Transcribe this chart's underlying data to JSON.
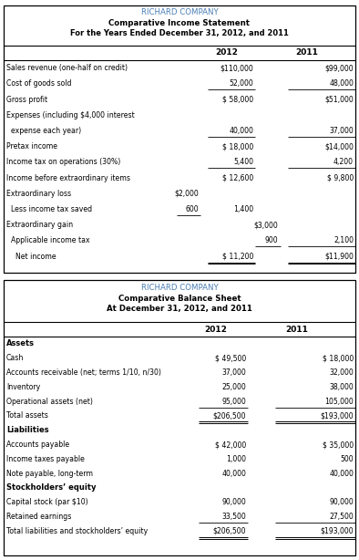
{
  "income_statement": {
    "title1": "RICHARD COMPANY",
    "title2": "Comparative Income Statement",
    "title3": "For the Years Ended December 31, 2012, and 2011",
    "col_headers": [
      "2012",
      "2011"
    ],
    "rows": [
      {
        "label": "Sales revenue (one-half on credit)",
        "col1": "$110,000",
        "col2": "$99,000",
        "underline1": false,
        "underline2": false
      },
      {
        "label": "Cost of goods sold",
        "col1": "52,000",
        "col2": "48,000",
        "underline1": true,
        "underline2": true
      },
      {
        "label": "Gross profit",
        "col1": "$ 58,000",
        "col2": "$51,000",
        "underline1": false,
        "underline2": false
      },
      {
        "label": "Expenses (including $4,000 interest",
        "col1": "",
        "col2": "",
        "underline1": false,
        "underline2": false
      },
      {
        "label": "  expense each year)",
        "col1": "40,000",
        "col2": "37,000",
        "underline1": true,
        "underline2": true
      },
      {
        "label": "Pretax income",
        "col1": "$ 18,000",
        "col2": "$14,000",
        "underline1": false,
        "underline2": false
      },
      {
        "label": "Income tax on operations (30%)",
        "col1": "5,400",
        "col2": "4,200",
        "underline1": true,
        "underline2": true
      },
      {
        "label": "Income before extraordinary items",
        "col1": "$ 12,600",
        "col2": "$ 9,800",
        "underline1": false,
        "underline2": false
      },
      {
        "label": "Extraordinary loss",
        "col1_sub": "$2,000",
        "col1": "",
        "col2": "",
        "underline1": false,
        "underline2": false,
        "has_sub": true
      },
      {
        "label": "  Less income tax saved",
        "col1_sub": "600",
        "col1": "1,400",
        "col2": "",
        "underline1": false,
        "underline2": false,
        "has_sub": true,
        "sub_underline": true
      },
      {
        "label": "Extraordinary gain",
        "col1": "",
        "col2_sub": "$3,000",
        "col2": "",
        "underline1": false,
        "underline2": false,
        "has_sub2": true
      },
      {
        "label": "  Applicable income tax",
        "col1": "",
        "col2_sub": "900",
        "col2": "2,100",
        "underline1": false,
        "underline2": true,
        "has_sub2": true,
        "sub2_underline": true
      },
      {
        "label": "    Net income",
        "col1": "$ 11,200",
        "col2": "$11,900",
        "underline1": true,
        "underline2": true,
        "double1": true,
        "double2": true
      }
    ]
  },
  "balance_sheet": {
    "title1": "RICHARD COMPANY",
    "title2": "Comparative Balance Sheet",
    "title3": "At December 31, 2012, and 2011",
    "col_headers": [
      "2012",
      "2011"
    ],
    "sections": [
      {
        "section_label": "Assets",
        "rows": [
          {
            "label": "Cash",
            "col1": "$ 49,500",
            "col2": "$ 18,000",
            "underline1": false,
            "underline2": false
          },
          {
            "label": "Accounts receivable (net; terms 1/10, n/30)",
            "col1": "37,000",
            "col2": "32,000",
            "underline1": false,
            "underline2": false
          },
          {
            "label": "Inventory",
            "col1": "25,000",
            "col2": "38,000",
            "underline1": false,
            "underline2": false
          },
          {
            "label": "Operational assets (net)",
            "col1": "95,000",
            "col2": "105,000",
            "underline1": true,
            "underline2": true
          },
          {
            "label": "Total assets",
            "col1": "$206,500",
            "col2": "$193,000",
            "underline1": true,
            "underline2": true,
            "double1": true,
            "double2": true
          }
        ]
      },
      {
        "section_label": "Liabilities",
        "rows": [
          {
            "label": "Accounts payable",
            "col1": "$ 42,000",
            "col2": "$ 35,000",
            "underline1": false,
            "underline2": false
          },
          {
            "label": "Income taxes payable",
            "col1": "1,000",
            "col2": "500",
            "underline1": false,
            "underline2": false
          },
          {
            "label": "Note payable, long-term",
            "col1": "40,000",
            "col2": "40,000",
            "underline1": false,
            "underline2": false
          }
        ]
      },
      {
        "section_label": "Stockholders’ equity",
        "rows": [
          {
            "label": "Capital stock (par $10)",
            "col1": "90,000",
            "col2": "90,000",
            "underline1": false,
            "underline2": false
          },
          {
            "label": "Retained earnings",
            "col1": "33,500",
            "col2": "27,500",
            "underline1": true,
            "underline2": true
          },
          {
            "label": "Total liabilities and stockholders’ equity",
            "col1": "$206,500",
            "col2": "$193,000",
            "underline1": true,
            "underline2": true,
            "double1": true,
            "double2": true
          }
        ]
      }
    ]
  },
  "colors": {
    "title_color": "#4a7eb5",
    "bg_color": "#ffffff"
  }
}
